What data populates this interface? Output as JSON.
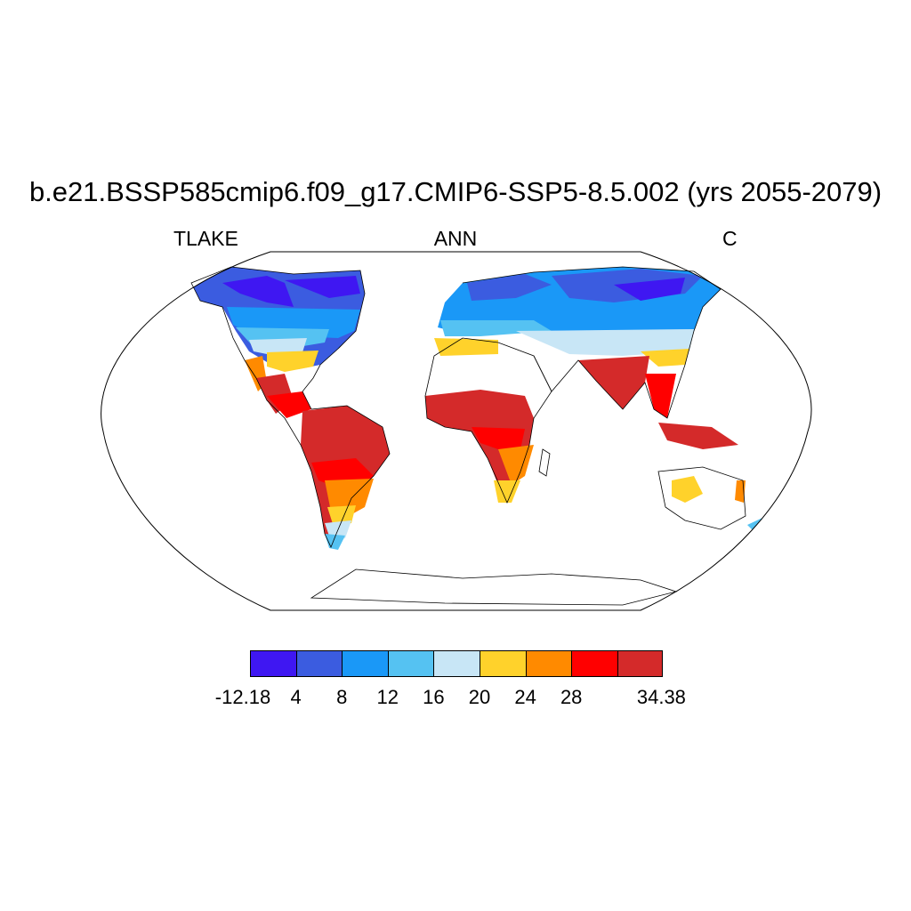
{
  "title": "b.e21.BSSP585cmip6.f09_g17.CMIP6-SSP5-8.5.002 (yrs 2055-2079)",
  "subtitle_left": "TLAKE",
  "subtitle_center": "ANN",
  "subtitle_right": "C",
  "projection": "Robinson",
  "colorbar": {
    "colors": [
      "#3f17f2",
      "#3b5ce0",
      "#1a98f7",
      "#55c2f2",
      "#c8e6f6",
      "#ffd22b",
      "#ff8a00",
      "#ff0000",
      "#d42a2a"
    ],
    "labels": [
      "-12.18",
      "4",
      "8",
      "12",
      "16",
      "20",
      "24",
      "28",
      "34.38"
    ]
  }
}
